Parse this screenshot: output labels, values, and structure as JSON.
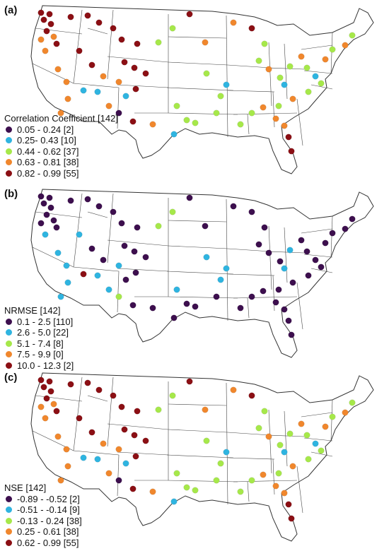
{
  "palette": {
    "c1": "#3d0f4e",
    "c2": "#2fb4e0",
    "c3": "#a6e84a",
    "c4": "#f0872d",
    "c5": "#8b0f14"
  },
  "panels": [
    {
      "id": "a",
      "label": "(a)",
      "legend_title": "Correlation Coefficient [142]",
      "legend_items": [
        {
          "label": "0.05 - 0.24 [2]",
          "color_key": "c1"
        },
        {
          "label": "0.25- 0.43 [10]",
          "color_key": "c2"
        },
        {
          "label": "0.44 - 0.62 [37]",
          "color_key": "c3"
        },
        {
          "label": "0.63 - 0.81 [38]",
          "color_key": "c4"
        },
        {
          "label": "0.82 - 0.99 [55]",
          "color_key": "c5"
        }
      ]
    },
    {
      "id": "b",
      "label": "(b)",
      "legend_title": "NRMSE [142]",
      "legend_items": [
        {
          "label": "0.1 - 2.5 [110]",
          "color_key": "c1"
        },
        {
          "label": "2.6 - 5.0 [22]",
          "color_key": "c2"
        },
        {
          "label": "5.1 - 7.4 [8]",
          "color_key": "c3"
        },
        {
          "label": "7.5 - 9.9 [0]",
          "color_key": "c4"
        },
        {
          "label": "10.0 - 12.3 [2]",
          "color_key": "c5"
        }
      ]
    },
    {
      "id": "c",
      "label": "(c)",
      "legend_title": "NSE [142]",
      "legend_items": [
        {
          "label": "-0.89 - -0.52 [2]",
          "color_key": "c1"
        },
        {
          "label": "-0.51 - -0.14 [9]",
          "color_key": "c2"
        },
        {
          "label": "-0.13 - 0.24 [38]",
          "color_key": "c3"
        },
        {
          "label": "0.25 - 0.61 [38]",
          "color_key": "c4"
        },
        {
          "label": "0.62 - 0.99 [55]",
          "color_key": "c5"
        }
      ]
    }
  ]
}
